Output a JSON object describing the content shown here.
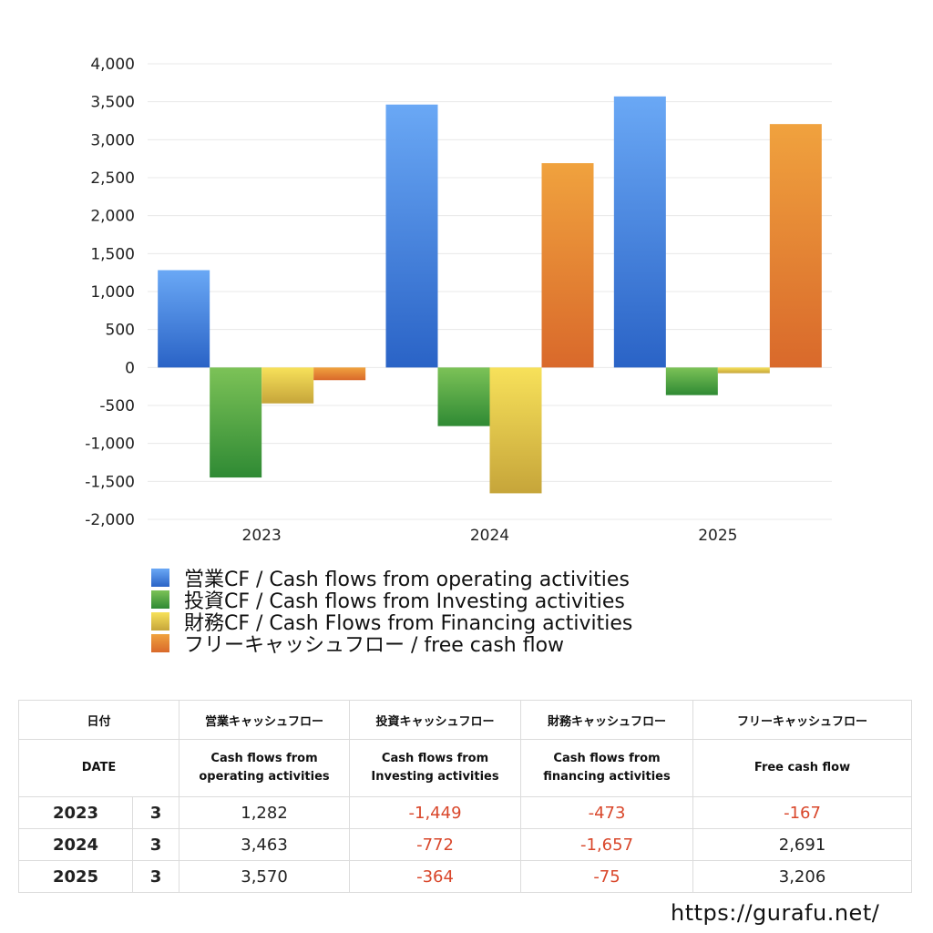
{
  "chart_data": {
    "type": "bar",
    "categories": [
      "2023",
      "2024",
      "2025"
    ],
    "series": [
      {
        "name": "営業CF / Cash flows from operating activities",
        "values": [
          1282,
          3463,
          3570
        ],
        "color_top": "#6aa8f5",
        "color_bottom": "#2a63c6"
      },
      {
        "name": "投資CF / Cash flows from Investing activities",
        "values": [
          -1449,
          -772,
          -364
        ],
        "color_top": "#7cc257",
        "color_bottom": "#2f8a34"
      },
      {
        "name": "財務CF / Cash Flows from Financing activities",
        "values": [
          -473,
          -1657,
          -75
        ],
        "color_top": "#f7e15a",
        "color_bottom": "#c6a53a"
      },
      {
        "name": "フリーキャッシュフロー / free cash flow",
        "values": [
          -167,
          2691,
          3206
        ],
        "color_top": "#f0a23e",
        "color_bottom": "#d9692b"
      }
    ],
    "ylim": [
      -2000,
      4000
    ],
    "yticks": [
      4000,
      3500,
      3000,
      2500,
      2000,
      1500,
      1000,
      500,
      0,
      -500,
      -1000,
      -1500,
      -2000
    ],
    "ytick_labels": [
      "4,000",
      "3,500",
      "3,000",
      "2,500",
      "2,000",
      "1,500",
      "1,000",
      "500",
      "0",
      "-500",
      "-1,000",
      "-1,500",
      "-2,000"
    ],
    "grid": true,
    "legend_position": "bottom"
  },
  "table": {
    "header_jp": [
      "日付",
      "営業キャッシュフロー",
      "投資キャッシュフロー",
      "財務キャッシュフロー",
      "フリーキャッシュフロー"
    ],
    "header_en": [
      "DATE",
      "Cash flows from operating activities",
      "Cash flows from Investing activities",
      "Cash flows from financing activities",
      "Free cash flow"
    ],
    "rows": [
      {
        "year": "2023",
        "month": "3",
        "operating": "1,282",
        "investing": "-1,449",
        "financing": "-473",
        "free": "-167"
      },
      {
        "year": "2024",
        "month": "3",
        "operating": "3,463",
        "investing": "-772",
        "financing": "-1,657",
        "free": "2,691"
      },
      {
        "year": "2025",
        "month": "3",
        "operating": "3,570",
        "investing": "-364",
        "financing": "-75",
        "free": "3,206"
      }
    ]
  },
  "colors": {
    "negative_text": "#d9472b",
    "grid": "#e8e8e8"
  },
  "footer": {
    "url": "https://gurafu.net/"
  }
}
